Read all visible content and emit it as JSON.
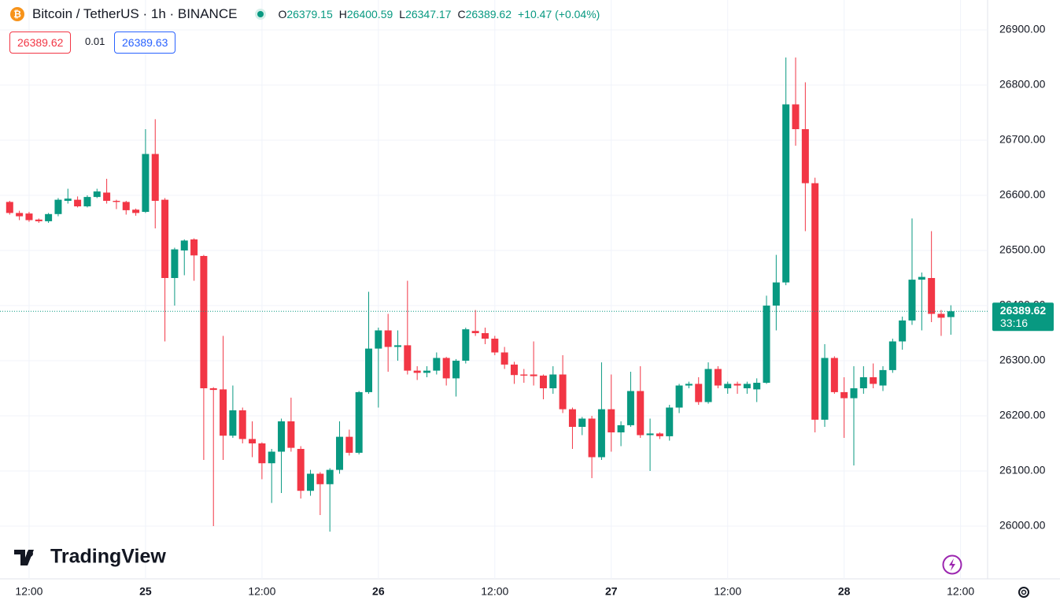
{
  "header": {
    "symbol": "Bitcoin / TetherUS · 1h · BINANCE",
    "ohlc": [
      {
        "label": "O",
        "value": "26379.15"
      },
      {
        "label": "H",
        "value": "26400.59"
      },
      {
        "label": "L",
        "value": "26347.17"
      },
      {
        "label": "C",
        "value": "26389.62"
      }
    ],
    "change": "+10.47 (+0.04%)",
    "sell": "26389.62",
    "spread": "0.01",
    "buy": "26389.63"
  },
  "branding": "TradingView",
  "chart_data": {
    "type": "candlestick",
    "up_color": "#089981",
    "down_color": "#f23645",
    "grid": true,
    "categories": [
      null,
      null,
      "12:00",
      null,
      null,
      null,
      null,
      null,
      null,
      null,
      null,
      null,
      null,
      null,
      "25",
      null,
      null,
      null,
      null,
      null,
      null,
      null,
      null,
      null,
      null,
      null,
      "12:00",
      null,
      null,
      null,
      null,
      null,
      null,
      null,
      null,
      null,
      null,
      null,
      "26",
      null,
      null,
      null,
      null,
      null,
      null,
      null,
      null,
      null,
      null,
      null,
      "12:00",
      null,
      null,
      null,
      null,
      null,
      null,
      null,
      null,
      null,
      null,
      null,
      "27",
      null,
      null,
      null,
      null,
      null,
      null,
      null,
      null,
      null,
      null,
      null,
      "12:00",
      null,
      null,
      null,
      null,
      null,
      null,
      null,
      null,
      null,
      null,
      null,
      "28",
      null,
      null,
      null,
      null,
      null,
      null,
      null,
      null,
      null,
      null,
      null,
      "12:00"
    ],
    "open": [
      26588,
      26568,
      26567,
      26556,
      26553,
      26566,
      26590,
      26592,
      26580,
      26597,
      26605,
      26590,
      26588,
      26574,
      26570,
      26675,
      26592,
      26450,
      26500,
      26520,
      26490,
      26250,
      26248,
      26164,
      26210,
      26158,
      26150,
      26114,
      26135,
      26190,
      26140,
      26064,
      26095,
      26076,
      26102,
      26162,
      26133,
      26243,
      26322,
      26355,
      26325,
      26328,
      26282,
      26278,
      26282,
      26305,
      26268,
      26300,
      26354,
      26350,
      26340,
      26315,
      26293,
      26275,
      26275,
      26273,
      26250,
      26275,
      26212,
      26180,
      26195,
      26125,
      26212,
      26170,
      26183,
      26245,
      26165,
      26168,
      26163,
      26215,
      26255,
      26258,
      26225,
      26285,
      26250,
      26258,
      26250,
      26248,
      26260,
      26400,
      26442,
      26765,
      26720,
      26622,
      26193,
      26305,
      26243,
      26232,
      26250,
      26270,
      26255,
      26283,
      26335,
      26373,
      26447,
      26450,
      26385,
      26379.15,
      null
    ],
    "high": [
      26590,
      26572,
      26570,
      26558,
      26568,
      26595,
      26612,
      26598,
      26600,
      26612,
      26630,
      26592,
      26590,
      26576,
      26720,
      26738,
      26595,
      26505,
      26520,
      26522,
      26492,
      26252,
      26345,
      26255,
      26215,
      26190,
      26152,
      26140,
      26195,
      26233,
      26145,
      26102,
      26098,
      26105,
      26190,
      26175,
      26245,
      26425,
      26360,
      26385,
      26355,
      26445,
      26290,
      26290,
      26315,
      26307,
      26303,
      26360,
      26392,
      26360,
      26345,
      26325,
      26298,
      26285,
      26335,
      26275,
      26290,
      26310,
      26215,
      26198,
      26200,
      26297,
      26275,
      26190,
      26280,
      26290,
      26195,
      26170,
      26220,
      26258,
      26262,
      26270,
      26297,
      26290,
      26262,
      26262,
      26262,
      26268,
      26418,
      26492,
      26850,
      26850,
      26805,
      26632,
      26330,
      26308,
      26270,
      26290,
      26290,
      26295,
      26290,
      26340,
      26380,
      26558,
      26460,
      26535,
      26392,
      26400.59,
      null
    ],
    "low": [
      26565,
      26555,
      26552,
      26550,
      26550,
      26562,
      26585,
      26578,
      26578,
      26595,
      26585,
      26575,
      26565,
      26563,
      26568,
      26540,
      26335,
      26400,
      26455,
      26445,
      26120,
      26000,
      26120,
      26160,
      26150,
      26125,
      26085,
      26042,
      26060,
      26135,
      26050,
      26055,
      26020,
      25990,
      26095,
      26128,
      26130,
      26240,
      26215,
      26280,
      26300,
      26275,
      26265,
      26270,
      26275,
      26255,
      26235,
      26295,
      26345,
      26330,
      26310,
      26285,
      26258,
      26260,
      26255,
      26230,
      26240,
      26205,
      26140,
      26165,
      26087,
      26120,
      26135,
      26145,
      26180,
      26160,
      26100,
      26158,
      26155,
      26205,
      26250,
      26220,
      26222,
      26250,
      26240,
      26240,
      26240,
      26225,
      26258,
      26355,
      26437,
      26690,
      26535,
      26170,
      26180,
      26240,
      26160,
      26110,
      26240,
      26250,
      26245,
      26278,
      26320,
      26365,
      26355,
      26370,
      26345,
      26347.17,
      null
    ],
    "close": [
      26568,
      26562,
      26555,
      26553,
      26566,
      26592,
      26594,
      26580,
      26597,
      26607,
      26590,
      26588,
      26573,
      26568,
      26675,
      26590,
      26450,
      26502,
      26518,
      26491,
      26250,
      26247,
      26164,
      26210,
      26158,
      26150,
      26114,
      26135,
      26190,
      26142,
      26064,
      26095,
      26076,
      26102,
      26162,
      26133,
      26243,
      26322,
      26355,
      26325,
      26328,
      26282,
      26278,
      26282,
      26305,
      26268,
      26300,
      26357,
      26350,
      26340,
      26315,
      26293,
      26274,
      26273,
      26272,
      26250,
      26275,
      26212,
      26180,
      26195,
      26125,
      26212,
      26170,
      26183,
      26245,
      26165,
      26168,
      26163,
      26215,
      26255,
      26258,
      26225,
      26285,
      26255,
      26258,
      26255,
      26258,
      26260,
      26400,
      26442,
      26765,
      26720,
      26622,
      26193,
      26305,
      26243,
      26232,
      26250,
      26270,
      26258,
      26283,
      26335,
      26373,
      26447,
      26452,
      26385,
      26378,
      26389.62,
      null
    ],
    "ylim": [
      25904.3,
      26954.3
    ],
    "yticks": [
      {
        "value": 26000,
        "label": "26000.00"
      },
      {
        "value": 26100,
        "label": "26100.00"
      },
      {
        "value": 26200,
        "label": "26200.00"
      },
      {
        "value": 26300,
        "label": "26300.00"
      },
      {
        "value": 26400,
        "label": "26400.00"
      },
      {
        "value": 26500,
        "label": "26500.00"
      },
      {
        "value": 26600,
        "label": "26600.00"
      },
      {
        "value": 26700,
        "label": "26700.00"
      },
      {
        "value": 26800,
        "label": "26800.00"
      },
      {
        "value": 26900,
        "label": "26900.00"
      }
    ],
    "last_price": {
      "value": 26389.62,
      "label": "26389.62"
    },
    "countdown": "33:16"
  }
}
